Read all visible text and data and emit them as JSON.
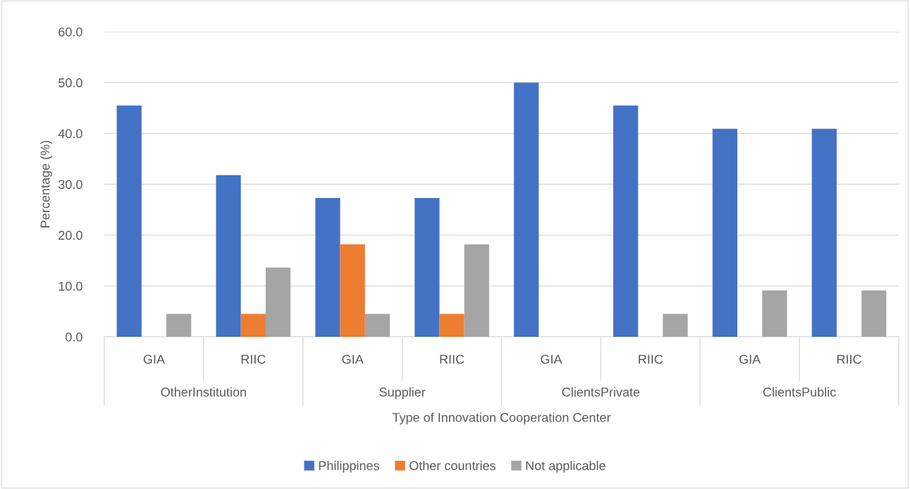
{
  "chart_data": {
    "type": "bar",
    "categories": [
      "GIA",
      "RIIC",
      "GIA",
      "RIIC",
      "GIA",
      "RIIC",
      "GIA",
      "RIIC"
    ],
    "annotations": [
      "OtherInstitution",
      "Supplier",
      "ClientsPrivate",
      "ClientsPublic"
    ],
    "xlabel": "Type of Innovation Cooperation Center",
    "ylabel": "Percentage (%)",
    "series": [
      {
        "name": "Philippines",
        "color": "#4472c4",
        "values": [
          45.5,
          31.8,
          27.3,
          27.3,
          50.0,
          45.5,
          40.9,
          40.9
        ]
      },
      {
        "name": "Other countries",
        "color": "#ed7d31",
        "values": [
          0,
          4.5,
          18.2,
          4.5,
          0,
          0,
          0,
          0
        ]
      },
      {
        "name": "Not applicable",
        "color": "#a5a5a5",
        "values": [
          4.5,
          13.6,
          4.5,
          18.2,
          0,
          4.5,
          9.1,
          9.1
        ]
      }
    ],
    "ylim": [
      0,
      60
    ],
    "yticks": [
      {
        "value": 0,
        "label": "0.0"
      },
      {
        "value": 10,
        "label": "10.0"
      },
      {
        "value": 20,
        "label": "20.0"
      },
      {
        "value": 30,
        "label": "30.0"
      },
      {
        "value": 40,
        "label": "40.0"
      },
      {
        "value": 50,
        "label": "50.0"
      },
      {
        "value": 60,
        "label": "60.0"
      }
    ],
    "grid": "y",
    "legend": "bottom"
  }
}
